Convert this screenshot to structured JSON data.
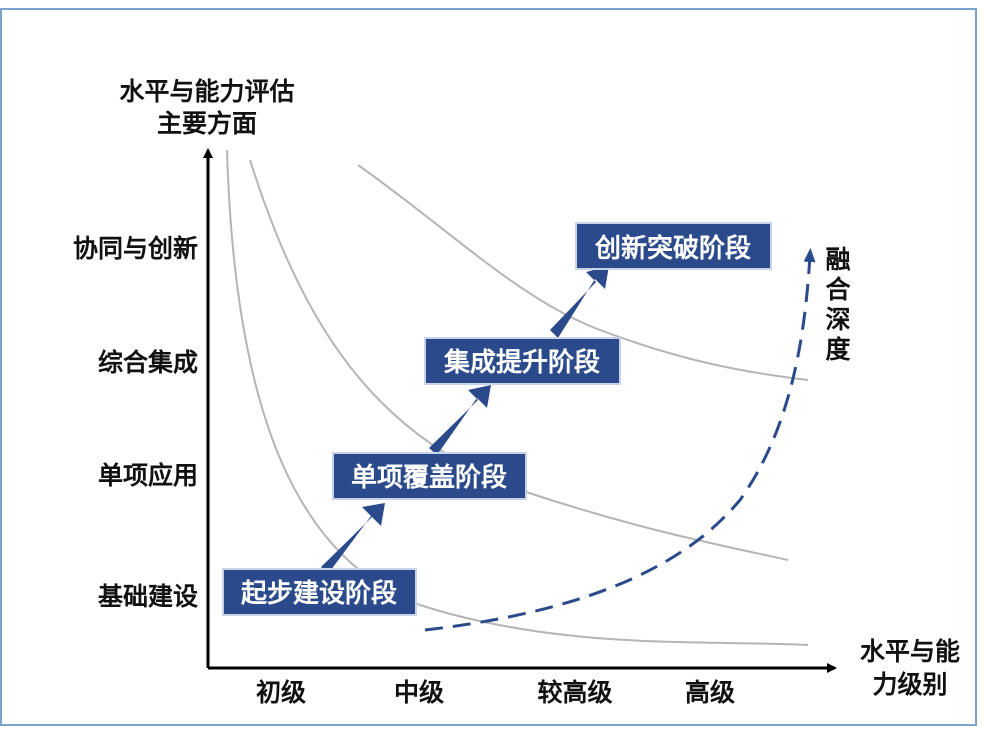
{
  "y_axis_title": [
    "水平与能力评估",
    "主要方面"
  ],
  "x_axis_title": [
    "水平与能",
    "力级别"
  ],
  "y_levels": [
    "基础建设",
    "单项应用",
    "综合集成",
    "协同与创新"
  ],
  "x_levels": [
    "初级",
    "中级",
    "较高级",
    "高级"
  ],
  "stages": [
    "起步建设阶段",
    "单项覆盖阶段",
    "集成提升阶段",
    "创新突破阶段"
  ],
  "depth_label": "融合深度",
  "colors": {
    "stage_box": "#2a4a8c",
    "arrow": "#2a4a8c",
    "curve": "#b5b5b5",
    "dashed": "#2a4a8c",
    "frame": "#7aa2cc",
    "axis": "#000000"
  }
}
